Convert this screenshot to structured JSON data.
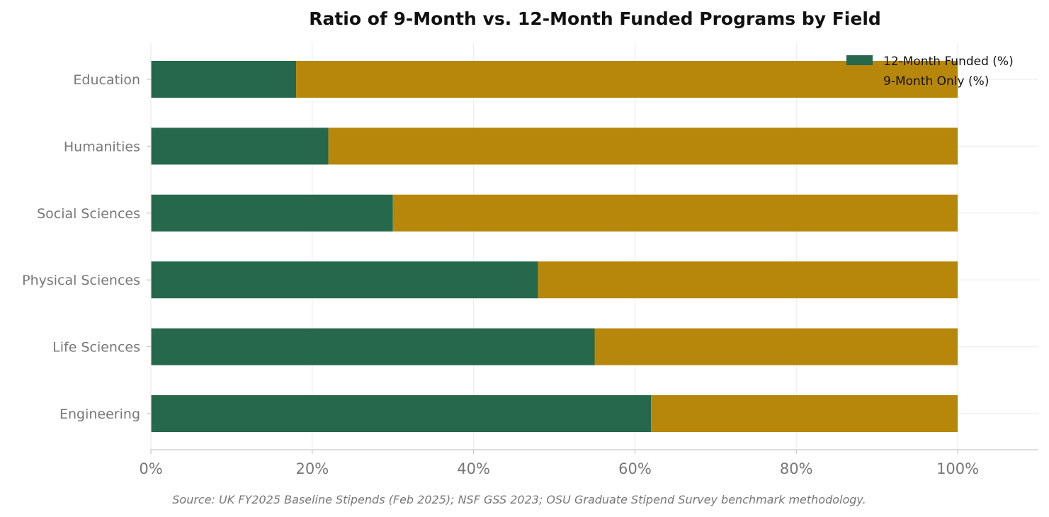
{
  "chart_data": {
    "type": "bar",
    "orientation": "horizontal",
    "stacked": true,
    "title": "Ratio of 9-Month vs. 12-Month Funded Programs by Field",
    "categories": [
      "Education",
      "Humanities",
      "Social Sciences",
      "Physical Sciences",
      "Life Sciences",
      "Engineering"
    ],
    "series": [
      {
        "name": "12-Month Funded (%)",
        "values": [
          18,
          22,
          30,
          48,
          55,
          62
        ],
        "color": "#25684c"
      },
      {
        "name": "9-Month Only (%)",
        "values": [
          82,
          78,
          70,
          52,
          45,
          38
        ],
        "color": "#b7870b"
      }
    ],
    "xlim": [
      0,
      110
    ],
    "xticks": [
      0,
      20,
      40,
      60,
      80,
      100
    ],
    "xtick_labels": [
      "0%",
      "20%",
      "40%",
      "60%",
      "80%",
      "100%"
    ],
    "grid": true,
    "legend_position": "top-right",
    "source_note": "Source: UK FY2025 Baseline Stipends (Feb 2025); NSF GSS 2023; OSU Graduate Stipend Survey benchmark methodology."
  }
}
